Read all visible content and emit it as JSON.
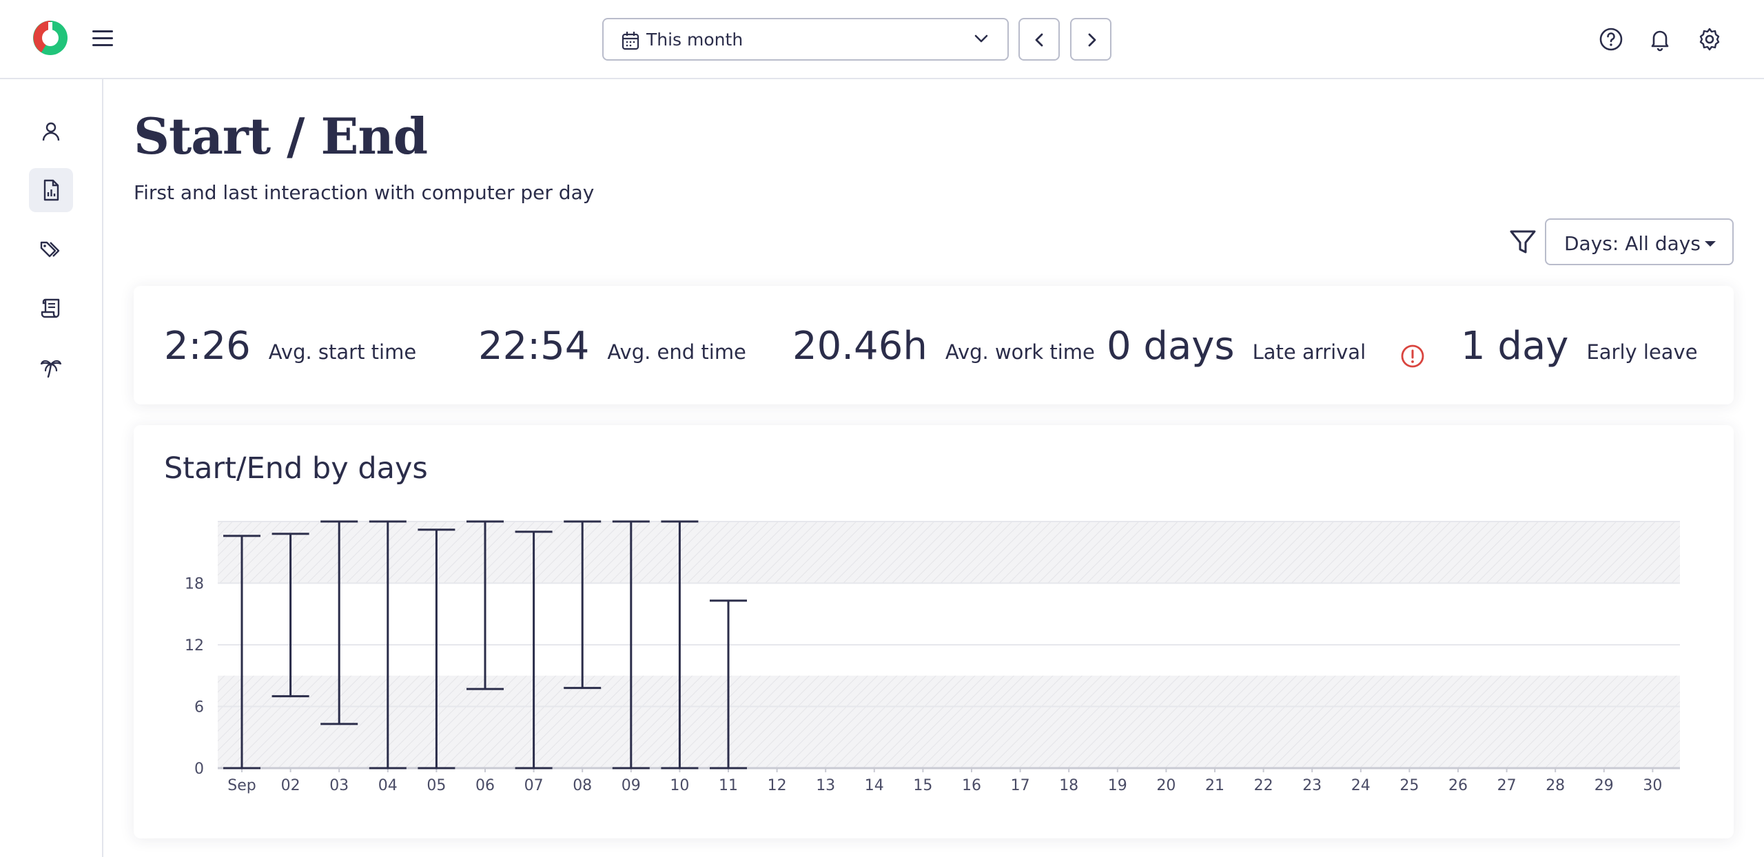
{
  "header": {
    "period_label": "This month",
    "icons": [
      "calendar-icon",
      "chevron-down-icon",
      "chevron-left-icon",
      "chevron-right-icon",
      "help-icon",
      "bell-icon",
      "gear-icon"
    ]
  },
  "sidebar": {
    "items": [
      {
        "icon": "user-icon",
        "active": false
      },
      {
        "icon": "report-icon",
        "active": true
      },
      {
        "icon": "tags-icon",
        "active": false
      },
      {
        "icon": "scroll-icon",
        "active": false
      },
      {
        "icon": "palm-tree-icon",
        "active": false
      }
    ]
  },
  "page": {
    "title": "Start / End",
    "subtitle": "First and last interaction with computer per day"
  },
  "filter": {
    "days_label": "Days: All days"
  },
  "stats": [
    {
      "value": "2:26",
      "label": "Avg. start time"
    },
    {
      "value": "22:54",
      "label": "Avg. end time"
    },
    {
      "value": "20.46h",
      "label": "Avg. work time"
    },
    {
      "value": "0 days",
      "label": "Late arrival"
    },
    {
      "value": "1 day",
      "label": "Early leave",
      "warning": true
    }
  ],
  "colors": {
    "text": "#2b2d4a",
    "warning": "#d9453f",
    "logo_red": "#e2403a",
    "logo_green": "#21c47a"
  },
  "chart": {
    "title": "Start/End by days"
  },
  "chart_data": {
    "type": "range-bar",
    "title": "Start/End by days",
    "categories": [
      "Sep",
      "02",
      "03",
      "04",
      "05",
      "06",
      "07",
      "08",
      "09",
      "10",
      "11",
      "12",
      "13",
      "14",
      "15",
      "16",
      "17",
      "18",
      "19",
      "20",
      "21",
      "22",
      "23",
      "24",
      "25",
      "26",
      "27",
      "28",
      "29",
      "30"
    ],
    "y_ticks": [
      "0",
      "6",
      "12",
      "18"
    ],
    "ylim": [
      0,
      24
    ],
    "shaded_bands": [
      [
        0,
        9
      ],
      [
        18,
        24
      ]
    ],
    "series": [
      {
        "ranges": [
          [
            0,
            22.6
          ],
          [
            7.0,
            22.8
          ],
          [
            4.3,
            24
          ],
          [
            0,
            24
          ],
          [
            0,
            23.2
          ],
          [
            7.7,
            24
          ],
          [
            0,
            23.0
          ],
          [
            7.8,
            24
          ],
          [
            0,
            24
          ],
          [
            0,
            24
          ],
          [
            0,
            16.3
          ]
        ]
      }
    ],
    "grid": true
  }
}
